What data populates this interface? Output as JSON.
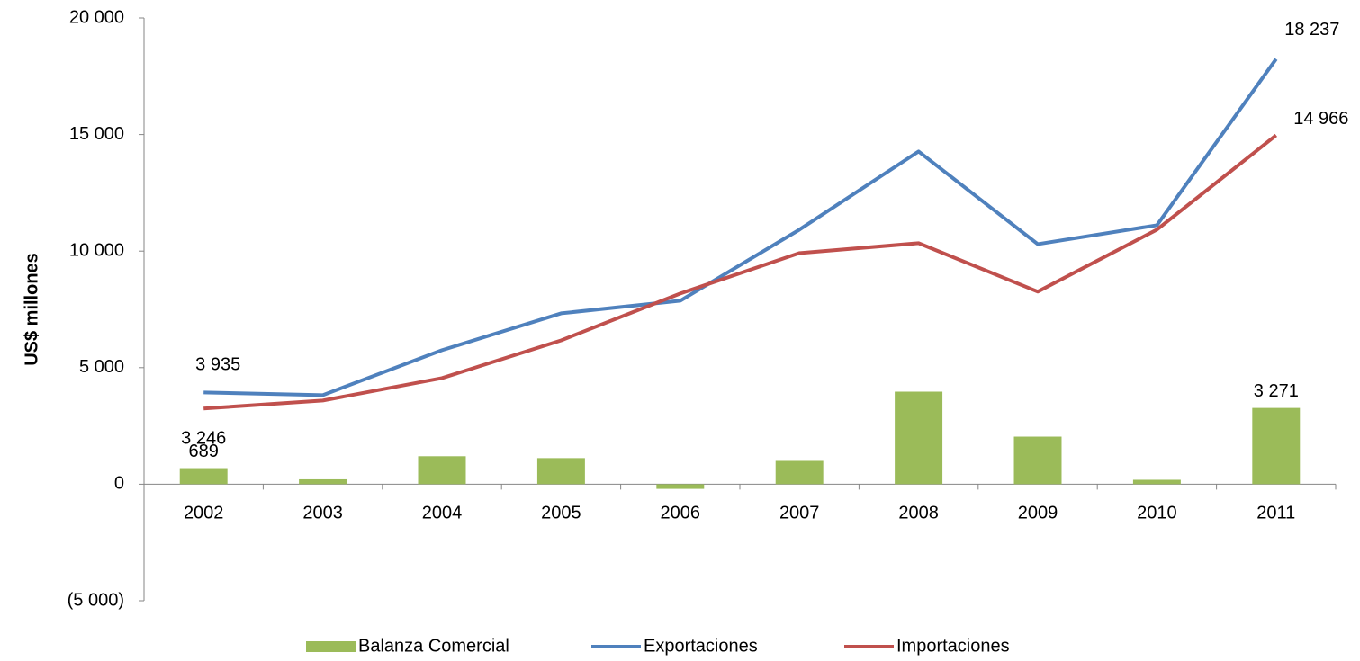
{
  "chart_data": {
    "type": "bar",
    "y_label": "US$ millones",
    "categories": [
      "2002",
      "2003",
      "2004",
      "2005",
      "2006",
      "2007",
      "2008",
      "2009",
      "2010",
      "2011"
    ],
    "series": [
      {
        "name": "Balanza Comercial",
        "type": "bar",
        "color": "#9bbb59",
        "values": [
          689,
          210,
          1200,
          1120,
          -200,
          1000,
          3970,
          2040,
          190,
          3271
        ],
        "value_labels": [
          "689",
          null,
          null,
          null,
          null,
          null,
          null,
          null,
          null,
          "3 271"
        ]
      },
      {
        "name": "Exportaciones",
        "type": "line",
        "color": "#4f81bd",
        "values": [
          3935,
          3820,
          5750,
          7330,
          7870,
          10920,
          14275,
          10300,
          11110,
          18237
        ],
        "value_labels": [
          "3 935",
          null,
          null,
          null,
          null,
          null,
          null,
          null,
          null,
          "18 237"
        ]
      },
      {
        "name": "Importaciones",
        "type": "line",
        "color": "#c0504d",
        "values": [
          3246,
          3590,
          4550,
          6170,
          8180,
          9915,
          10340,
          8260,
          10920,
          14966
        ],
        "value_labels": [
          "3 246",
          null,
          null,
          null,
          null,
          null,
          null,
          null,
          null,
          "14 966"
        ]
      }
    ],
    "ylim": [
      -5000,
      20000
    ],
    "yticks": [
      {
        "value": -5000,
        "label": "(5 000)"
      },
      0,
      {
        "value": 5000,
        "label": "5 000"
      },
      {
        "value": 10000,
        "label": "10 000"
      },
      {
        "value": 15000,
        "label": "15 000"
      },
      {
        "value": 20000,
        "label": "20 000"
      }
    ],
    "grid": false,
    "legend": "bottom"
  }
}
